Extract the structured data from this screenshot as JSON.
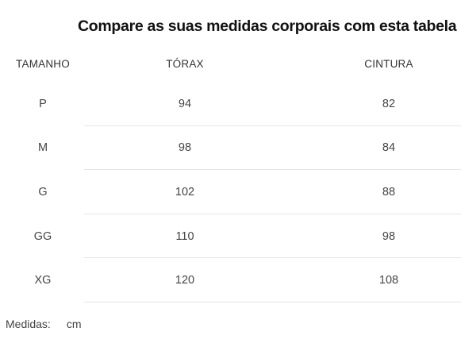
{
  "title": "Compare as suas medidas corporais com esta tabela",
  "table": {
    "headers": {
      "size": "TAMANHO",
      "chest": "TÓRAX",
      "waist": "CINTURA"
    },
    "rows": [
      {
        "size": "P",
        "chest": "94",
        "waist": "82"
      },
      {
        "size": "M",
        "chest": "98",
        "waist": "84"
      },
      {
        "size": "G",
        "chest": "102",
        "waist": "88"
      },
      {
        "size": "GG",
        "chest": "110",
        "waist": "98"
      },
      {
        "size": "XG",
        "chest": "120",
        "waist": "108"
      }
    ]
  },
  "footer": {
    "label": "Medidas:",
    "unit": "cm"
  }
}
